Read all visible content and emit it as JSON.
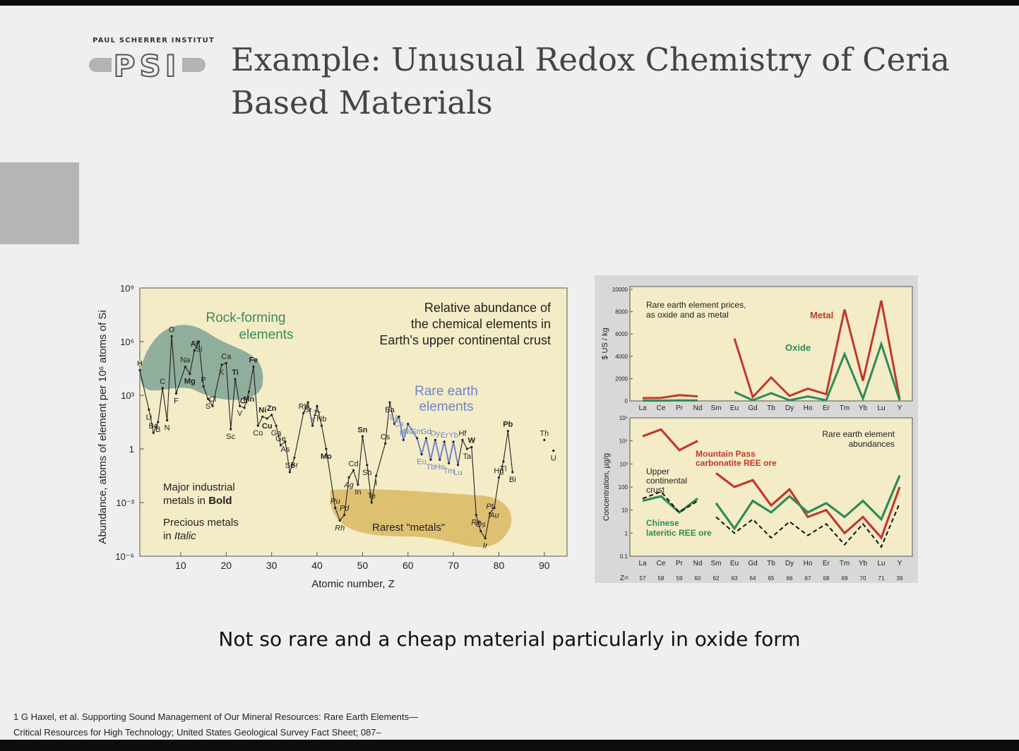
{
  "slide": {
    "logo_org": "PAUL SCHERRER INSTITUT",
    "logo_text": "PSI",
    "title_line1": "Example: Unusual Redox Chemistry of Ceria",
    "title_line2": "Based Materials",
    "caption": "Not so rare and a cheap material particularly in oxide form",
    "reference_line1": "1 G Haxel, et al. Supporting Sound Management of Our Mineral Resources: Rare Earth Elements—",
    "reference_line2": "Critical Resources for High Technology; United States Geological Survey Fact Sheet; 087–"
  },
  "colors": {
    "plot_bg": "#f4ecc7",
    "rock_blob": "#6f9a8d",
    "rare_blob": "#d9b861",
    "red": "#c0392b",
    "green": "#2e8b57",
    "blue": "#6f86c4"
  },
  "chart_data": [
    {
      "type": "line",
      "title": "Relative abundance of the chemical elements in Earth's upper continental crust",
      "title_lines": [
        "Relative abundance of",
        "the chemical elements in",
        "Earth's upper continental crust"
      ],
      "xlabel": "Atomic number, Z",
      "ylabel": "Abundance, atoms of element per 10⁶ atoms of Si",
      "xlim": [
        1,
        95
      ],
      "ylim_log10": [
        -6,
        9
      ],
      "x_ticks": [
        10,
        20,
        30,
        40,
        50,
        60,
        70,
        80,
        90
      ],
      "y_ticks": [
        {
          "exp": 9,
          "label": "10⁹"
        },
        {
          "exp": 6,
          "label": "10⁶"
        },
        {
          "exp": 3,
          "label": "10³"
        },
        {
          "exp": 0,
          "label": "1"
        },
        {
          "exp": -3,
          "label": "10⁻³"
        },
        {
          "exp": -6,
          "label": "10⁻⁶"
        }
      ],
      "group_labels": {
        "rock_forming": [
          "Rock-forming",
          "elements"
        ],
        "rare_earth": [
          "Rare earth",
          "elements"
        ],
        "industrial": [
          "Major industrial",
          "metals in ",
          "Bold"
        ],
        "precious": [
          "Precious metals",
          "in ",
          "Italic"
        ],
        "rarest": "Rarest \"metals\""
      },
      "elements": [
        {
          "z": 1,
          "s": "H",
          "v": 4.4
        },
        {
          "z": 3,
          "s": "Li",
          "v": 2.2
        },
        {
          "z": 4,
          "s": "Be",
          "v": 0.9
        },
        {
          "z": 5,
          "s": "B",
          "v": 1.5
        },
        {
          "z": 6,
          "s": "C",
          "v": 3.4
        },
        {
          "z": 7,
          "s": "N",
          "v": 1.6
        },
        {
          "z": 8,
          "s": "O",
          "v": 6.3
        },
        {
          "z": 9,
          "s": "F",
          "v": 3.1
        },
        {
          "z": 11,
          "s": "Na",
          "v": 4.6
        },
        {
          "z": 12,
          "s": "Mg",
          "v": 4.2
        },
        {
          "z": 13,
          "s": "Al",
          "v": 5.5
        },
        {
          "z": 14,
          "s": "Si",
          "v": 6.0
        },
        {
          "z": 15,
          "s": "P",
          "v": 3.5
        },
        {
          "z": 16,
          "s": "S",
          "v": 2.8
        },
        {
          "z": 17,
          "s": "Cl",
          "v": 2.4
        },
        {
          "z": 19,
          "s": "K",
          "v": 4.7
        },
        {
          "z": 20,
          "s": "Ca",
          "v": 4.8
        },
        {
          "z": 21,
          "s": "Sc",
          "v": 1.1
        },
        {
          "z": 22,
          "s": "Ti",
          "v": 3.9
        },
        {
          "z": 23,
          "s": "V",
          "v": 2.4
        },
        {
          "z": 24,
          "s": "Cr",
          "v": 2.3
        },
        {
          "z": 25,
          "s": "Mn",
          "v": 3.2
        },
        {
          "z": 26,
          "s": "Fe",
          "v": 4.6
        },
        {
          "z": 27,
          "s": "Co",
          "v": 1.3
        },
        {
          "z": 28,
          "s": "Ni",
          "v": 1.8
        },
        {
          "z": 29,
          "s": "Cu",
          "v": 1.7
        },
        {
          "z": 30,
          "s": "Zn",
          "v": 1.9
        },
        {
          "z": 31,
          "s": "Ga",
          "v": 1.3
        },
        {
          "z": 32,
          "s": "Ge",
          "v": 0.2
        },
        {
          "z": 33,
          "s": "As",
          "v": 0.4
        },
        {
          "z": 34,
          "s": "Se",
          "v": -1.3
        },
        {
          "z": 35,
          "s": "Br",
          "v": -0.5
        },
        {
          "z": 37,
          "s": "Rb",
          "v": 2.0
        },
        {
          "z": 38,
          "s": "Sr",
          "v": 2.6
        },
        {
          "z": 39,
          "s": "Y",
          "v": 1.3
        },
        {
          "z": 40,
          "s": "Zr",
          "v": 2.4
        },
        {
          "z": 41,
          "s": "Nb",
          "v": 1.3
        },
        {
          "z": 42,
          "s": "Mo",
          "v": 0.0
        },
        {
          "z": 44,
          "s": "Ru",
          "v": -3.3
        },
        {
          "z": 45,
          "s": "Rh",
          "v": -4.0
        },
        {
          "z": 46,
          "s": "Pd",
          "v": -3.7
        },
        {
          "z": 47,
          "s": "Ag",
          "v": -1.6
        },
        {
          "z": 48,
          "s": "Cd",
          "v": -1.2
        },
        {
          "z": 49,
          "s": "In",
          "v": -2.0
        },
        {
          "z": 50,
          "s": "Sn",
          "v": 0.7
        },
        {
          "z": 51,
          "s": "Sb",
          "v": -0.9
        },
        {
          "z": 52,
          "s": "Te",
          "v": -3.0
        },
        {
          "z": 53,
          "s": "I",
          "v": -1.5
        },
        {
          "z": 55,
          "s": "Cs",
          "v": 0.3
        },
        {
          "z": 56,
          "s": "Ba",
          "v": 2.6
        },
        {
          "z": 57,
          "s": "La",
          "v": 1.4
        },
        {
          "z": 58,
          "s": "Ce",
          "v": 1.8
        },
        {
          "z": 59,
          "s": "Pr",
          "v": 0.5
        },
        {
          "z": 60,
          "s": "Nd",
          "v": 1.4
        },
        {
          "z": 62,
          "s": "Sm",
          "v": 0.6
        },
        {
          "z": 63,
          "s": "Eu",
          "v": -0.3
        },
        {
          "z": 64,
          "s": "Gd",
          "v": 0.6
        },
        {
          "z": 65,
          "s": "Tb",
          "v": -0.6
        },
        {
          "z": 66,
          "s": "Dy",
          "v": 0.5
        },
        {
          "z": 67,
          "s": "Ho",
          "v": -0.6
        },
        {
          "z": 68,
          "s": "Er",
          "v": 0.4
        },
        {
          "z": 69,
          "s": "Tm",
          "v": -0.8
        },
        {
          "z": 70,
          "s": "Yb",
          "v": 0.4
        },
        {
          "z": 71,
          "s": "Lu",
          "v": -0.9
        },
        {
          "z": 72,
          "s": "Hf",
          "v": 0.5
        },
        {
          "z": 73,
          "s": "Ta",
          "v": 0.0
        },
        {
          "z": 74,
          "s": "W",
          "v": 0.1
        },
        {
          "z": 75,
          "s": "Re",
          "v": -3.7
        },
        {
          "z": 76,
          "s": "Os",
          "v": -4.6
        },
        {
          "z": 77,
          "s": "Ir",
          "v": -5.0
        },
        {
          "z": 78,
          "s": "Pt",
          "v": -3.6
        },
        {
          "z": 79,
          "s": "Au",
          "v": -3.3
        },
        {
          "z": 80,
          "s": "Hg",
          "v": -1.6
        },
        {
          "z": 81,
          "s": "Tl",
          "v": -0.7
        },
        {
          "z": 82,
          "s": "Pb",
          "v": 1.0
        },
        {
          "z": 83,
          "s": "Bi",
          "v": -1.3
        },
        {
          "z": 90,
          "s": "Th",
          "v": 0.5
        },
        {
          "z": 92,
          "s": "U",
          "v": -0.1
        }
      ]
    },
    {
      "type": "line",
      "title": "Rare earth element prices, as oxide and as metal",
      "title_lines": [
        "Rare earth element prices,",
        "as oxide and as metal"
      ],
      "ylabel": "$ US / kg",
      "ylim": [
        0,
        10000
      ],
      "y_ticks": [
        0,
        2000,
        4000,
        6000,
        8000,
        10000
      ],
      "categories": [
        "La",
        "Ce",
        "Pr",
        "Nd",
        "Sm",
        "Eu",
        "Gd",
        "Tb",
        "Dy",
        "Ho",
        "Er",
        "Tm",
        "Yb",
        "Lu",
        "Y"
      ],
      "series": [
        {
          "name": "Metal",
          "color": "#c0392b",
          "values": [
            250,
            270,
            520,
            400,
            null,
            5600,
            350,
            2100,
            450,
            1100,
            600,
            8200,
            1800,
            9000,
            150
          ]
        },
        {
          "name": "Oxide",
          "color": "#2e8b57",
          "values": [
            20,
            20,
            50,
            40,
            null,
            800,
            60,
            700,
            60,
            400,
            60,
            4200,
            200,
            5100,
            40
          ]
        }
      ]
    },
    {
      "type": "line",
      "title": "Rare earth element abundances",
      "title_lines": [
        "Rare earth element",
        "abundances"
      ],
      "ylabel": "Concentration, µg/g",
      "ylim_log10": [
        -1,
        5
      ],
      "y_ticks": [
        {
          "exp": 5,
          "label": "10⁵"
        },
        {
          "exp": 4,
          "label": "10⁴"
        },
        {
          "exp": 3,
          "label": "10³"
        },
        {
          "exp": 2,
          "label": "100"
        },
        {
          "exp": 1,
          "label": "10"
        },
        {
          "exp": 0,
          "label": "1"
        },
        {
          "exp": -1,
          "label": "0.1"
        }
      ],
      "categories": [
        "La",
        "Ce",
        "Pr",
        "Nd",
        "Sm",
        "Eu",
        "Gd",
        "Tb",
        "Dy",
        "Ho",
        "Er",
        "Tm",
        "Yb",
        "Lu",
        "Y"
      ],
      "z_label": "Z=",
      "atomic_numbers": [
        "57",
        "58",
        "59",
        "60",
        "62",
        "63",
        "64",
        "65",
        "66",
        "67",
        "68",
        "69",
        "70",
        "71",
        "39"
      ],
      "series": [
        {
          "name": "Mountain Pass carbonatite REE ore",
          "label_lines": [
            "Mountain Pass",
            "carbonatite REE ore"
          ],
          "color": "#c0392b",
          "log_values": [
            4.2,
            4.5,
            3.6,
            4.0,
            2.6,
            2.0,
            2.3,
            1.2,
            1.9,
            0.7,
            1.0,
            0.0,
            0.7,
            -0.2,
            2.0
          ]
        },
        {
          "name": "Chinese lateritic REE ore",
          "label_lines": [
            "Chinese",
            "lateritic REE ore"
          ],
          "color": "#2e8b57",
          "log_values": [
            1.4,
            1.6,
            0.9,
            1.5,
            1.3,
            0.2,
            1.4,
            0.9,
            1.6,
            0.9,
            1.3,
            0.7,
            1.4,
            0.6,
            2.5
          ]
        },
        {
          "name": "Upper continental crust",
          "label_lines": [
            "Upper",
            "continental",
            "crust"
          ],
          "color": "#111111",
          "dashed": true,
          "log_values": [
            1.5,
            1.8,
            0.9,
            1.4,
            0.7,
            0.0,
            0.6,
            -0.2,
            0.5,
            -0.1,
            0.4,
            -0.5,
            0.4,
            -0.6,
            1.3
          ]
        }
      ]
    }
  ]
}
